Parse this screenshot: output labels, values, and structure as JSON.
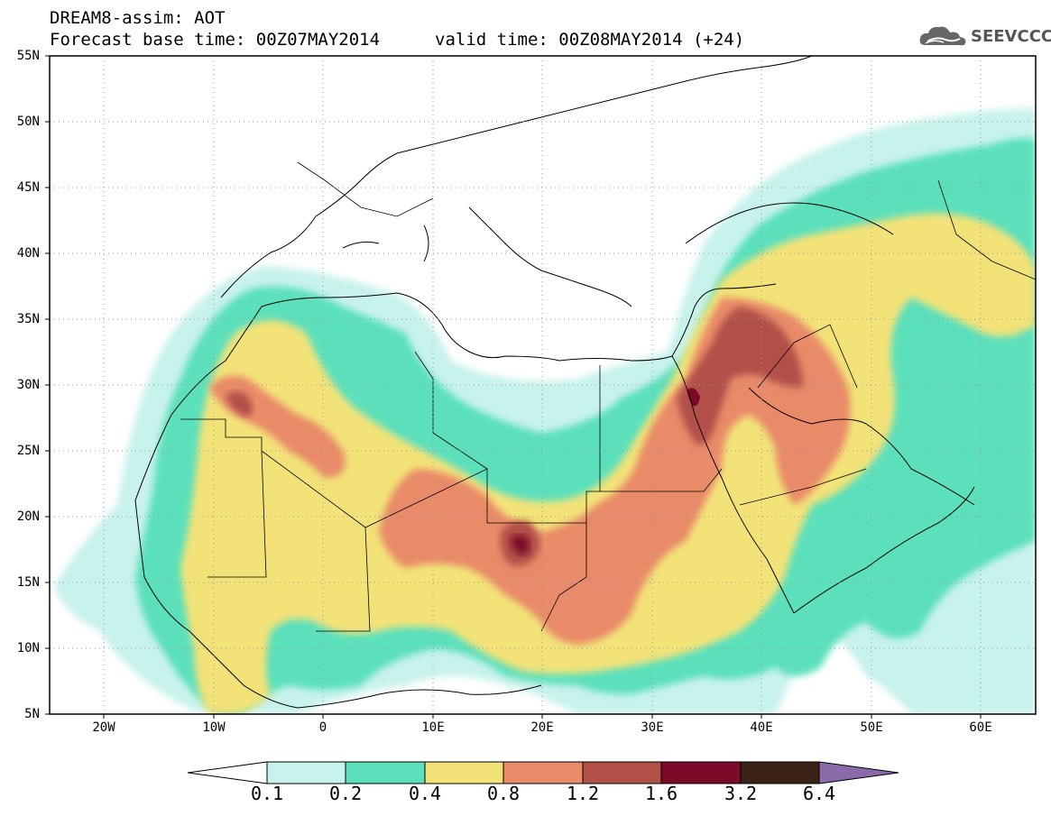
{
  "header": {
    "line1": "DREAM8-assim: AOT",
    "line2": "Forecast base time: 00Z07MAY2014",
    "line3": "valid time: 00Z08MAY2014 (+24)"
  },
  "logo": {
    "text": "SEEVCCC",
    "icon": "cloud-icon"
  },
  "axes": {
    "lat_labels": [
      "55N",
      "50N",
      "45N",
      "40N",
      "35N",
      "30N",
      "25N",
      "20N",
      "15N",
      "10N",
      "5N"
    ],
    "lon_labels": [
      "20W",
      "10W",
      "0",
      "10E",
      "20E",
      "30E",
      "40E",
      "50E",
      "60E"
    ],
    "lat_range": [
      5,
      55
    ],
    "lon_range": [
      -25,
      65
    ]
  },
  "colorbar": {
    "levels": [
      "0.1",
      "0.2",
      "0.4",
      "0.8",
      "1.2",
      "1.6",
      "3.2",
      "6.4"
    ],
    "colors": [
      "#c8f2ec",
      "#5ce0bc",
      "#f2e278",
      "#e98a68",
      "#b2504a",
      "#7a0a28",
      "#3a2216",
      "#8a6aa8"
    ],
    "under_color": "#ffffff"
  }
}
